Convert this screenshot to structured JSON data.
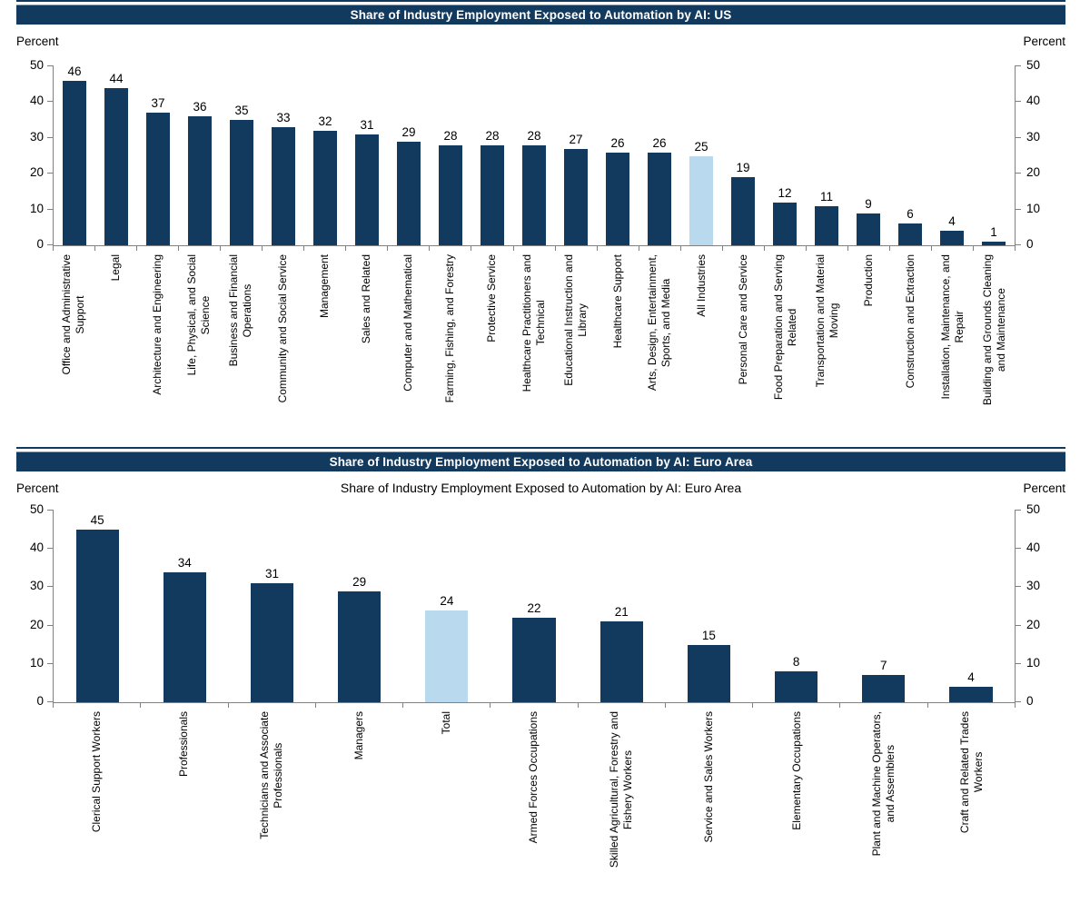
{
  "colors": {
    "bar": "#123A5E",
    "highlight": "#B9D9EF",
    "titlebar_bg": "#123A5E",
    "titlebar_text": "#FFFFFF",
    "axis": "#808080"
  },
  "chart_data": [
    {
      "type": "bar",
      "title": "Share of Industry Employment Exposed to Automation by AI: US",
      "inner_title": "",
      "ylabel_left": "Percent",
      "ylabel_right": "Percent",
      "ylim": [
        0,
        50
      ],
      "yticks": [
        0,
        10,
        20,
        30,
        40,
        50
      ],
      "grid": false,
      "legend": "none",
      "categories": [
        "Office and Administrative\nSupport",
        "Legal",
        "Architecture and Engineering",
        "Life, Physical, and Social\nScience",
        "Business and Financial\nOperations",
        "Community and Social Service",
        "Management",
        "Sales and Related",
        "Computer and Mathematical",
        "Farming, Fishing, and Forestry",
        "Protective Service",
        "Healthcare Practitioners and\nTechnical",
        "Educational Instruction and\nLibrary",
        "Healthcare Support",
        "Arts, Design, Entertainment,\nSports, and Media",
        "All Industries",
        "Personal Care and Service",
        "Food Preparation and Serving\nRelated",
        "Transportation and Material\nMoving",
        "Production",
        "Construction and Extraction",
        "Installation, Maintenance, and\nRepair",
        "Building and Grounds Cleaning\nand Maintenance"
      ],
      "values": [
        46,
        44,
        37,
        36,
        35,
        33,
        32,
        31,
        29,
        28,
        28,
        28,
        27,
        26,
        26,
        25,
        19,
        12,
        11,
        9,
        6,
        4,
        1
      ],
      "highlight_index": 15,
      "highlight_category": "All Industries"
    },
    {
      "type": "bar",
      "title": "Share of Industry Employment Exposed to Automation by AI: Euro Area",
      "inner_title": "Share of Industry Employment Exposed to Automation by AI: Euro Area",
      "ylabel_left": "Percent",
      "ylabel_right": "Percent",
      "ylim": [
        0,
        50
      ],
      "yticks": [
        0,
        10,
        20,
        30,
        40,
        50
      ],
      "grid": false,
      "legend": "none",
      "categories": [
        "Clerical Support Workers",
        "Professionals",
        "Technicians and Associate\nProfessionals",
        "Managers",
        "Total",
        "Armed Forces Occupations",
        "Skilled Agricultural, Forestry and\nFishery Workers",
        "Service and Sales Workers",
        "Elementary Occupations",
        "Plant and Machine Operators,\nand Assemblers",
        "Craft and Related Trades\nWorkers"
      ],
      "values": [
        45,
        34,
        31,
        29,
        24,
        22,
        21,
        15,
        8,
        7,
        4
      ],
      "highlight_index": 4,
      "highlight_category": "Total"
    }
  ]
}
